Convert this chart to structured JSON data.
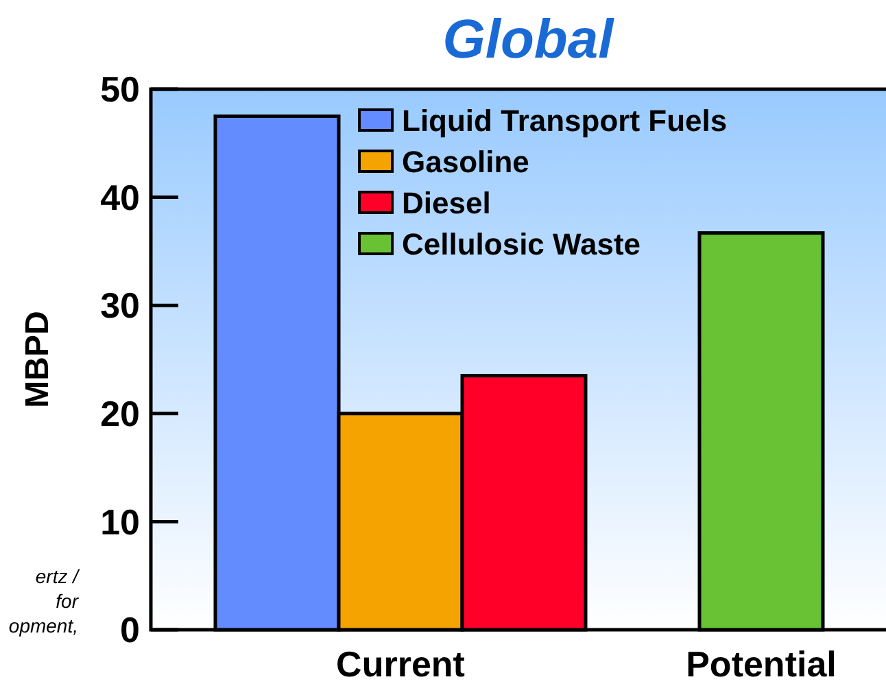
{
  "chart_data": {
    "type": "bar",
    "title": "Global",
    "ylabel": "MBPD",
    "categories": [
      "Current",
      "Potential"
    ],
    "series": [
      {
        "name": "Liquid Transport Fuels",
        "color": "#628cff",
        "values": [
          47.5,
          null
        ]
      },
      {
        "name": "Gasoline",
        "color": "#f5a300",
        "values": [
          20,
          null
        ]
      },
      {
        "name": "Diesel",
        "color": "#ff0028",
        "values": [
          23.5,
          null
        ]
      },
      {
        "name": "Cellulosic Waste",
        "color": "#68c234",
        "values": [
          null,
          36.7
        ]
      }
    ],
    "ylim": [
      0,
      50
    ],
    "yticks": [
      0,
      10,
      20,
      30,
      40,
      50
    ],
    "legend": "top",
    "annotations": [
      "ertz /\nfor\nopment,"
    ]
  }
}
